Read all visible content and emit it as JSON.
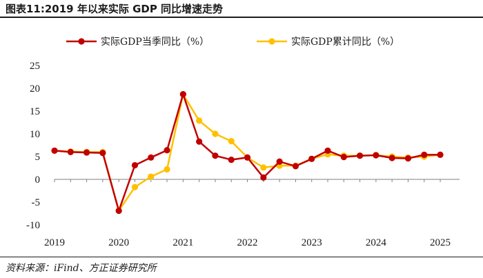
{
  "header": {
    "title": "图表11:2019 年以来实际 GDP 同比增速走势"
  },
  "footer": {
    "source": "资料来源：iFind、方正证券研究所"
  },
  "colors": {
    "quarterly": "#c00000",
    "cumulative": "#ffc000",
    "axis": "#7f7f7f"
  },
  "chart_data": {
    "type": "line",
    "title": "",
    "xlabel": "",
    "ylabel": "",
    "ylim": [
      -10,
      25
    ],
    "yticks": [
      "25",
      "20",
      "15",
      "10",
      "5",
      "0",
      "-5",
      "-10"
    ],
    "ytick_values": [
      25,
      20,
      15,
      10,
      5,
      0,
      -5,
      -10
    ],
    "xticks": [
      "2019",
      "2020",
      "2021",
      "2022",
      "2023",
      "2024",
      "2025"
    ],
    "xtick_values": [
      2019,
      2020,
      2021,
      2022,
      2023,
      2024,
      2025
    ],
    "legend_position": "top",
    "x": [
      2019.0,
      2019.25,
      2019.5,
      2019.75,
      2020.0,
      2020.25,
      2020.5,
      2020.75,
      2021.0,
      2021.25,
      2021.5,
      2021.75,
      2022.0,
      2022.25,
      2022.5,
      2022.75,
      2023.0,
      2023.25,
      2023.5,
      2023.75,
      2024.0,
      2024.25,
      2024.5,
      2024.75,
      2025.0
    ],
    "series": [
      {
        "name": "实际GDP当季同比（%）",
        "color": "#c00000",
        "values": [
          6.3,
          6.0,
          5.9,
          5.8,
          -6.9,
          3.1,
          4.8,
          6.4,
          18.7,
          8.3,
          5.2,
          4.3,
          4.8,
          0.4,
          3.9,
          2.9,
          4.5,
          6.3,
          4.9,
          5.2,
          5.3,
          4.7,
          4.6,
          5.4,
          5.4
        ]
      },
      {
        "name": "实际GDP累计同比（%）",
        "color": "#ffc000",
        "values": [
          6.3,
          6.1,
          6.0,
          6.0,
          -6.9,
          -1.7,
          0.6,
          2.2,
          18.7,
          12.9,
          10.0,
          8.4,
          4.8,
          2.6,
          3.0,
          3.0,
          4.5,
          5.5,
          5.2,
          5.2,
          5.3,
          5.0,
          4.8,
          5.0,
          5.4
        ]
      }
    ]
  }
}
